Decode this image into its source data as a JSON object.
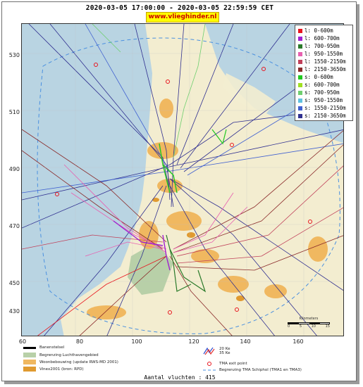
{
  "header": {
    "title": "2020-03-05 17:00:00 - 2020-03-05 22:59:59 CET",
    "brand": "www.vlieghinder.nl"
  },
  "axes": {
    "y_ticks": [
      "530",
      "510",
      "490",
      "470",
      "450",
      "430"
    ],
    "x_ticks": [
      "60",
      "80",
      "100",
      "120",
      "140",
      "160"
    ]
  },
  "legend": {
    "items": [
      {
        "label": "l: 0-600m",
        "color": "#e8141e"
      },
      {
        "label": "l: 600-700m",
        "color": "#a020d0"
      },
      {
        "label": "l: 700-950m",
        "color": "#2a7a2a"
      },
      {
        "label": "l: 950-1550m",
        "color": "#e860b0"
      },
      {
        "label": "l: 1550-2150m",
        "color": "#c0405a"
      },
      {
        "label": "l: 2150-3650m",
        "color": "#8a2a2a"
      },
      {
        "label": "s: 0-600m",
        "color": "#20c820"
      },
      {
        "label": "s: 600-700m",
        "color": "#a0e020"
      },
      {
        "label": "s: 700-950m",
        "color": "#6fcf6f"
      },
      {
        "label": "s: 950-1550m",
        "color": "#60c0e0"
      },
      {
        "label": "s: 1550-2150m",
        "color": "#4060d0"
      },
      {
        "label": "s: 2150-3650m",
        "color": "#303090"
      }
    ]
  },
  "map_legend": {
    "runways": "Banenstelsel",
    "airport_boundary": "Begrenzing Luchthavengebied",
    "housing": "Woonbebouwing (update RWS-MD 2001)",
    "vinex": "Vinex2001 (bron: RPD)",
    "ke": "20 Ke\n35 Ke",
    "tma_exit": "TMA exit point",
    "tma_boundary": "Begrenzing TMA Schiphol  (TMA1 en TMA3)",
    "colors": {
      "housing": "#f0b860",
      "vinex": "#e09a30",
      "airport": "#b8d0a8",
      "tma": "#4a90e0"
    }
  },
  "scale": {
    "label": "Kilometers",
    "ticks": [
      "0",
      "5",
      "10",
      "15"
    ]
  },
  "footer": {
    "count_label": "Aantal vluchten : 415"
  }
}
